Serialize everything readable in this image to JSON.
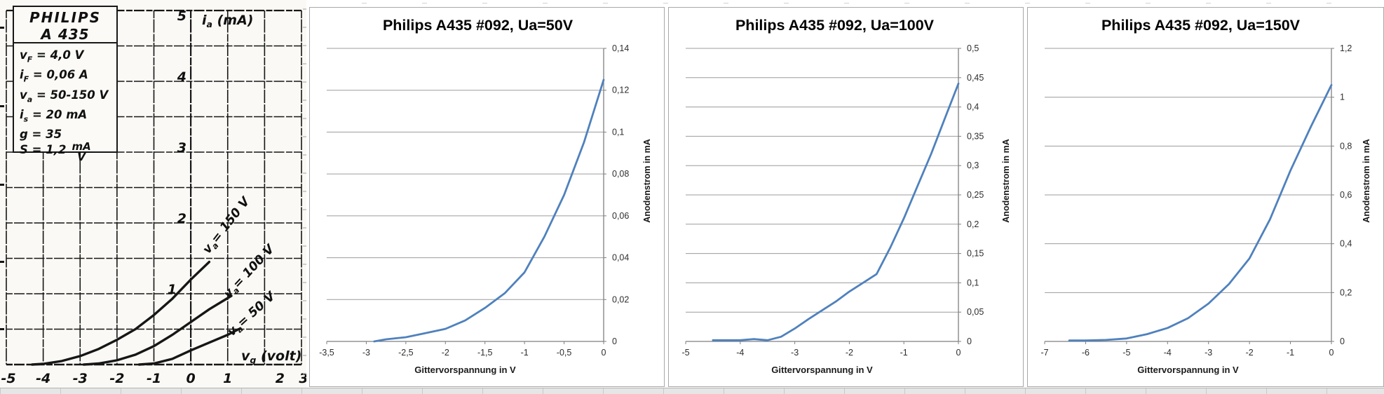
{
  "scan": {
    "brand": "PHILIPS",
    "model": "A 435",
    "specs": [
      {
        "base": "v",
        "sub": "F",
        "rest": "= 4,0 V"
      },
      {
        "base": "i",
        "sub": "F",
        "rest": "= 0,06 A"
      },
      {
        "base": "v",
        "sub": "a",
        "rest": "= 50-150 V"
      },
      {
        "base": "i",
        "sub": "s",
        "rest": "= 20 mA"
      },
      {
        "base": "g",
        "sub": "",
        "rest": "= 35"
      },
      {
        "base": "S",
        "sub": "",
        "rest": "= 1,2",
        "frac_num": "mA",
        "frac_den": "V"
      }
    ]
  },
  "chart_data": [
    {
      "type": "line",
      "panel": "scan",
      "title": "PHILIPS A 435",
      "xlabel": {
        "base": "v",
        "sub": "g",
        "rest": " (volt)"
      },
      "ylabel": {
        "base": "i",
        "sub": "a",
        "rest": " (mA)"
      },
      "xlim": [
        -5,
        3
      ],
      "ylim": [
        0,
        5
      ],
      "x_ticks": [
        {
          "v": -5,
          "l": "-5"
        },
        {
          "v": -4,
          "l": "-4"
        },
        {
          "v": -3,
          "l": "-3"
        },
        {
          "v": -2,
          "l": "-2"
        },
        {
          "v": -1,
          "l": "-1"
        },
        {
          "v": 0,
          "l": "0"
        },
        {
          "v": 1,
          "l": "1"
        },
        {
          "v": 2,
          "l": "2"
        },
        {
          "v": 3,
          "l": "3"
        }
      ],
      "y_ticks": [
        {
          "v": 5,
          "l": "5"
        },
        {
          "v": 4,
          "l": "4"
        },
        {
          "v": 3,
          "l": "3"
        },
        {
          "v": 2,
          "l": "2"
        },
        {
          "v": 1,
          "l": "1"
        }
      ],
      "y_minor_step": 0.5,
      "grid": "both",
      "series": [
        {
          "name": "va = 150 V",
          "points": [
            [
              -4.3,
              0
            ],
            [
              -4,
              0.01
            ],
            [
              -3.5,
              0.05
            ],
            [
              -3,
              0.12
            ],
            [
              -2.5,
              0.22
            ],
            [
              -2,
              0.35
            ],
            [
              -1.5,
              0.5
            ],
            [
              -1,
              0.7
            ],
            [
              -0.5,
              0.93
            ],
            [
              0,
              1.2
            ],
            [
              0.5,
              1.45
            ]
          ]
        },
        {
          "name": "va = 100 V",
          "points": [
            [
              -2.9,
              0
            ],
            [
              -2.5,
              0.015
            ],
            [
              -2,
              0.06
            ],
            [
              -1.5,
              0.14
            ],
            [
              -1,
              0.26
            ],
            [
              -0.5,
              0.42
            ],
            [
              0,
              0.6
            ],
            [
              0.5,
              0.78
            ],
            [
              1.1,
              0.97
            ]
          ]
        },
        {
          "name": "va = 50 V",
          "points": [
            [
              -1.4,
              0
            ],
            [
              -1,
              0.015
            ],
            [
              -0.5,
              0.08
            ],
            [
              0,
              0.2
            ],
            [
              0.5,
              0.31
            ],
            [
              1,
              0.42
            ],
            [
              1.3,
              0.5
            ]
          ]
        }
      ]
    },
    {
      "type": "line",
      "title": "Philips A435 #092, Ua=50V",
      "xlabel": "Gittervorspannung in V",
      "ylabel": "Anodenstrom in mA",
      "xlim": [
        -3.5,
        0
      ],
      "ylim": [
        0,
        0.14
      ],
      "grid": "horizontal",
      "legend": "none",
      "line_color": "#4f81bd",
      "x_ticks": [
        {
          "v": -3.5,
          "l": "-3,5"
        },
        {
          "v": -3,
          "l": "-3"
        },
        {
          "v": -2.5,
          "l": "-2,5"
        },
        {
          "v": -2,
          "l": "-2"
        },
        {
          "v": -1.5,
          "l": "-1,5"
        },
        {
          "v": -1,
          "l": "-1"
        },
        {
          "v": -0.5,
          "l": "-0,5"
        },
        {
          "v": 0,
          "l": "0"
        }
      ],
      "y_ticks": [
        {
          "v": 0,
          "l": "0"
        },
        {
          "v": 0.02,
          "l": "0,02"
        },
        {
          "v": 0.04,
          "l": "0,04"
        },
        {
          "v": 0.06,
          "l": "0,06"
        },
        {
          "v": 0.08,
          "l": "0,08"
        },
        {
          "v": 0.1,
          "l": "0,1"
        },
        {
          "v": 0.12,
          "l": "0,12"
        },
        {
          "v": 0.14,
          "l": "0,14"
        }
      ],
      "series": [
        {
          "name": "Anodenstrom",
          "points": [
            [
              -2.9,
              0
            ],
            [
              -2.75,
              0.001
            ],
            [
              -2.5,
              0.002
            ],
            [
              -2.25,
              0.004
            ],
            [
              -2,
              0.006
            ],
            [
              -1.75,
              0.01
            ],
            [
              -1.5,
              0.016
            ],
            [
              -1.25,
              0.023
            ],
            [
              -1,
              0.033
            ],
            [
              -0.75,
              0.05
            ],
            [
              -0.5,
              0.07
            ],
            [
              -0.25,
              0.095
            ],
            [
              0,
              0.125
            ]
          ]
        }
      ]
    },
    {
      "type": "line",
      "title": "Philips A435 #092, Ua=100V",
      "xlabel": "Gittervorspannung in V",
      "ylabel": "Anodenstrom in mA",
      "xlim": [
        -5,
        0
      ],
      "ylim": [
        0,
        0.5
      ],
      "grid": "horizontal",
      "legend": "none",
      "line_color": "#4f81bd",
      "x_ticks": [
        {
          "v": -5,
          "l": "-5"
        },
        {
          "v": -4,
          "l": "-4"
        },
        {
          "v": -3,
          "l": "-3"
        },
        {
          "v": -2,
          "l": "-2"
        },
        {
          "v": -1,
          "l": "-1"
        },
        {
          "v": 0,
          "l": "0"
        }
      ],
      "y_ticks": [
        {
          "v": 0,
          "l": "0"
        },
        {
          "v": 0.05,
          "l": "0,05"
        },
        {
          "v": 0.1,
          "l": "0,1"
        },
        {
          "v": 0.15,
          "l": "0,15"
        },
        {
          "v": 0.2,
          "l": "0,2"
        },
        {
          "v": 0.25,
          "l": "0,25"
        },
        {
          "v": 0.3,
          "l": "0,3"
        },
        {
          "v": 0.35,
          "l": "0,35"
        },
        {
          "v": 0.4,
          "l": "0,4"
        },
        {
          "v": 0.45,
          "l": "0,45"
        },
        {
          "v": 0.5,
          "l": "0,5"
        }
      ],
      "series": [
        {
          "name": "Anodenstrom",
          "points": [
            [
              -4.5,
              0.002
            ],
            [
              -4.25,
              0.002
            ],
            [
              -4,
              0.002
            ],
            [
              -3.75,
              0.004
            ],
            [
              -3.5,
              0.002
            ],
            [
              -3.25,
              0.008
            ],
            [
              -3,
              0.022
            ],
            [
              -2.75,
              0.038
            ],
            [
              -2.5,
              0.053
            ],
            [
              -2.25,
              0.068
            ],
            [
              -2,
              0.085
            ],
            [
              -1.75,
              0.1
            ],
            [
              -1.5,
              0.115
            ],
            [
              -1.25,
              0.16
            ],
            [
              -1,
              0.21
            ],
            [
              -0.75,
              0.265
            ],
            [
              -0.5,
              0.32
            ],
            [
              -0.25,
              0.38
            ],
            [
              0,
              0.44
            ]
          ]
        }
      ]
    },
    {
      "type": "line",
      "title": "Philips A435 #092, Ua=150V",
      "xlabel": "Gittervorspannung in V",
      "ylabel": "Anodenstrom in mA",
      "xlim": [
        -7,
        0
      ],
      "ylim": [
        0,
        1.2
      ],
      "grid": "horizontal",
      "legend": "none",
      "line_color": "#4f81bd",
      "x_ticks": [
        {
          "v": -7,
          "l": "-7"
        },
        {
          "v": -6,
          "l": "-6"
        },
        {
          "v": -5,
          "l": "-5"
        },
        {
          "v": -4,
          "l": "-4"
        },
        {
          "v": -3,
          "l": "-3"
        },
        {
          "v": -2,
          "l": "-2"
        },
        {
          "v": -1,
          "l": "-1"
        },
        {
          "v": 0,
          "l": "0"
        }
      ],
      "y_ticks": [
        {
          "v": 0,
          "l": "0"
        },
        {
          "v": 0.2,
          "l": "0,2"
        },
        {
          "v": 0.4,
          "l": "0,4"
        },
        {
          "v": 0.6,
          "l": "0,6"
        },
        {
          "v": 0.8,
          "l": "0,8"
        },
        {
          "v": 1,
          "l": "1"
        },
        {
          "v": 1.2,
          "l": "1,2"
        }
      ],
      "series": [
        {
          "name": "Anodenstrom",
          "points": [
            [
              -6.4,
              0.004
            ],
            [
              -6,
              0.004
            ],
            [
              -5.5,
              0.006
            ],
            [
              -5,
              0.012
            ],
            [
              -4.5,
              0.03
            ],
            [
              -4,
              0.055
            ],
            [
              -3.5,
              0.095
            ],
            [
              -3,
              0.155
            ],
            [
              -2.5,
              0.235
            ],
            [
              -2,
              0.34
            ],
            [
              -1.5,
              0.5
            ],
            [
              -1,
              0.7
            ],
            [
              -0.5,
              0.88
            ],
            [
              0,
              1.05
            ]
          ]
        }
      ]
    }
  ],
  "colors": {
    "curve_blue": "#4f81bd",
    "gridline_gray": "#9c9c9c",
    "axis_gray": "#7f7f7f",
    "panel_border": "#a8a8a8",
    "scan_ink": "#161616"
  }
}
